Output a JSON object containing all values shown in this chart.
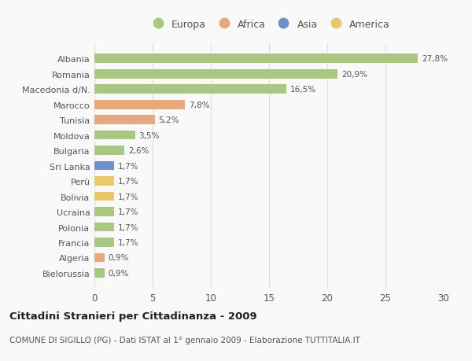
{
  "countries": [
    "Albania",
    "Romania",
    "Macedonia d/N.",
    "Marocco",
    "Tunisia",
    "Moldova",
    "Bulgaria",
    "Sri Lanka",
    "Perù",
    "Bolivia",
    "Ucraina",
    "Polonia",
    "Francia",
    "Algeria",
    "Bielorussia"
  ],
  "values": [
    27.8,
    20.9,
    16.5,
    7.8,
    5.2,
    3.5,
    2.6,
    1.7,
    1.7,
    1.7,
    1.7,
    1.7,
    1.7,
    0.9,
    0.9
  ],
  "labels": [
    "27,8%",
    "20,9%",
    "16,5%",
    "7,8%",
    "5,2%",
    "3,5%",
    "2,6%",
    "1,7%",
    "1,7%",
    "1,7%",
    "1,7%",
    "1,7%",
    "1,7%",
    "0,9%",
    "0,9%"
  ],
  "colors": [
    "#a8c882",
    "#a8c882",
    "#a8c882",
    "#e8a87c",
    "#e8a87c",
    "#a8c882",
    "#a8c882",
    "#7090cc",
    "#e8c868",
    "#e8c868",
    "#a8c882",
    "#a8c882",
    "#a8c882",
    "#e8a87c",
    "#a8c882"
  ],
  "legend_labels": [
    "Europa",
    "Africa",
    "Asia",
    "America"
  ],
  "legend_colors": [
    "#a8c882",
    "#e8a87c",
    "#7090cc",
    "#e8c868"
  ],
  "title": "Cittadini Stranieri per Cittadinanza - 2009",
  "subtitle": "COMUNE DI SIGILLO (PG) - Dati ISTAT al 1° gennaio 2009 - Elaborazione TUTTITALIA.IT",
  "xlim": [
    0,
    30
  ],
  "xticks": [
    0,
    5,
    10,
    15,
    20,
    25,
    30
  ],
  "background_color": "#f9f9f9",
  "grid_color": "#e0e0e0"
}
